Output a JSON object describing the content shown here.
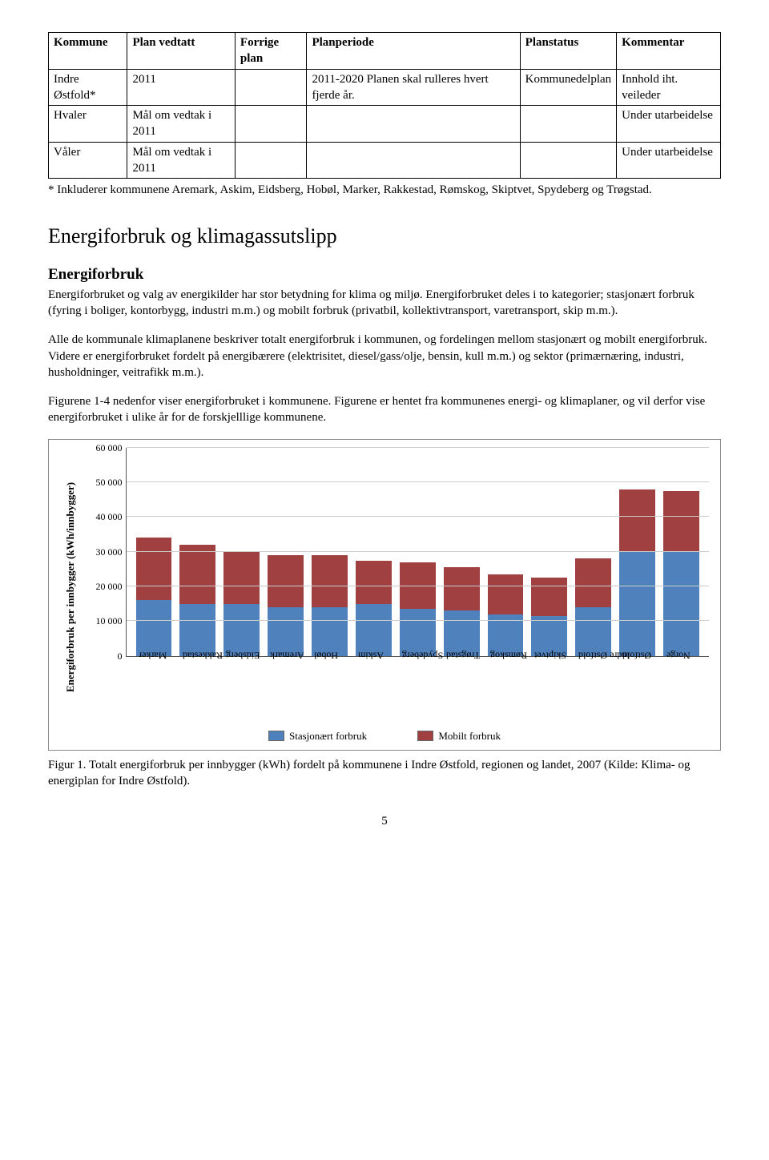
{
  "table": {
    "columns": [
      "Kommune",
      "Plan vedtatt",
      "Forrige plan",
      "Planperiode",
      "Planstatus",
      "Kommentar"
    ],
    "rows": [
      [
        "Indre Østfold*",
        "2011",
        "",
        "2011-2020 Planen skal rulleres hvert fjerde år.",
        "Kommunedelplan",
        "Innhold iht. veileder"
      ],
      [
        "Hvaler",
        "Mål om vedtak i 2011",
        "",
        "",
        "",
        "Under utarbeidelse"
      ],
      [
        "Våler",
        "Mål om vedtak i 2011",
        "",
        "",
        "",
        "Under utarbeidelse"
      ]
    ]
  },
  "footnote": "* Inkluderer kommunene Aremark, Askim, Eidsberg, Hobøl, Marker, Rakkestad, Rømskog, Skiptvet, Spydeberg og Trøgstad.",
  "section_title": "Energiforbruk og klimagassutslipp",
  "sub_title": "Energiforbruk",
  "para1": "Energiforbruket og valg av energikilder har stor betydning for klima og miljø. Energiforbruket deles i to kategorier; stasjonært forbruk (fyring i boliger, kontorbygg, industri m.m.) og mobilt forbruk (privatbil, kollektivtransport, varetransport, skip m.m.).",
  "para2": "Alle de kommunale klimaplanene beskriver totalt energiforbruk i kommunen, og fordelingen mellom stasjonært og mobilt energiforbruk. Videre er energiforbruket fordelt på energibærere (elektrisitet, diesel/gass/olje, bensin, kull m.m.) og sektor (primærnæring, industri, husholdninger, veitrafikk m.m.).",
  "para3": "Figurene 1-4 nedenfor viser energiforbruket i kommunene. Figurene er hentet fra kommunenes energi- og klimaplaner, og vil derfor vise energiforbruket i ulike år for de forskjelllige kommunene.",
  "chart": {
    "type": "stacked-bar",
    "ylabel": "Energiforbruk per innbygger (kWh/innbygger)",
    "ylim": [
      0,
      60000
    ],
    "ytick_step": 10000,
    "yticks": [
      "0",
      "10 000",
      "20 000",
      "30 000",
      "40 000",
      "50 000",
      "60 000"
    ],
    "grid_color": "#cccccc",
    "background": "#ffffff",
    "series": [
      {
        "name": "Stasjonært forbruk",
        "color": "#4f81bd"
      },
      {
        "name": "Mobilt forbruk",
        "color": "#a04040"
      }
    ],
    "categories": [
      "Marker",
      "Rakkestad",
      "Eidsberg",
      "Aremark",
      "Hobøl",
      "Askim",
      "Spydeberg",
      "Trøgstad",
      "Rømskog",
      "Skiptvet",
      "Indre Østfold",
      "Østfold",
      "Norge"
    ],
    "stasjonaert": [
      16000,
      15000,
      15000,
      14000,
      14000,
      15000,
      13500,
      13000,
      12000,
      11500,
      14000,
      30000,
      30000
    ],
    "mobilt": [
      18000,
      17000,
      15000,
      15000,
      15000,
      12500,
      13500,
      12500,
      11500,
      11000,
      14000,
      18000,
      17500
    ]
  },
  "legend_labels": [
    "Stasjonært forbruk",
    "Mobilt forbruk"
  ],
  "caption": "Figur 1. Totalt energiforbruk per innbygger (kWh) fordelt på kommunene i Indre Østfold, regionen og landet, 2007 (Kilde: Klima- og energiplan for Indre Østfold).",
  "pagenum": "5"
}
